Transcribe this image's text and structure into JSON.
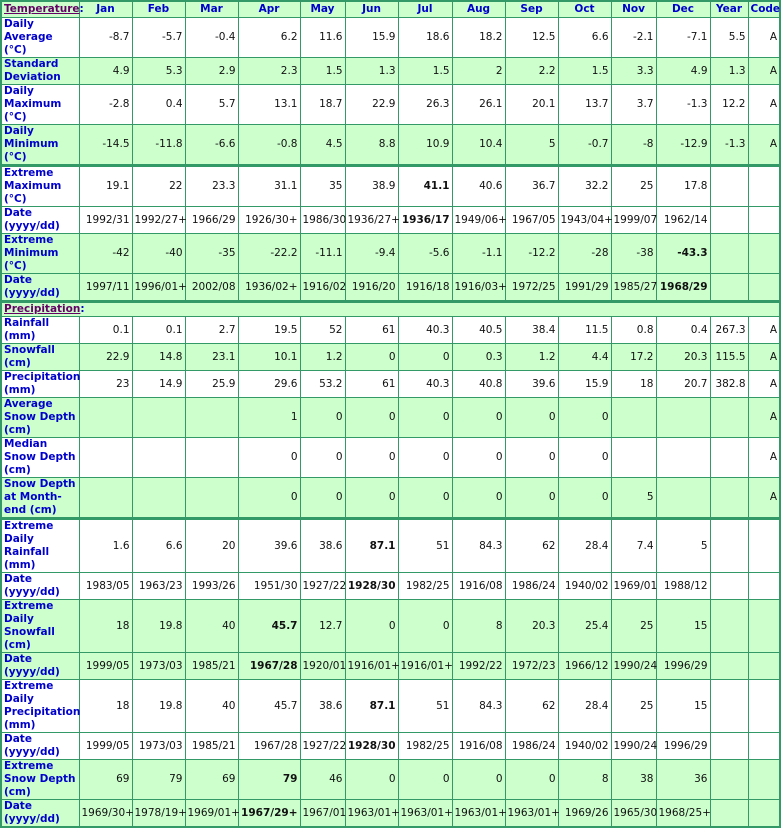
{
  "colors": {
    "header_bg": "#ccffcc",
    "border": "#339966",
    "label": "#0000cc",
    "section": "#660066"
  },
  "columns": [
    "Jan",
    "Feb",
    "Mar",
    "Apr",
    "May",
    "Jun",
    "Jul",
    "Aug",
    "Sep",
    "Oct",
    "Nov",
    "Dec",
    "Year",
    "Code"
  ],
  "sections": [
    {
      "title": "Temperature",
      "colon": ":",
      "rows": [
        {
          "label": "Daily Average (°C)",
          "values": [
            "-8.7",
            "-5.7",
            "-0.4",
            "6.2",
            "11.6",
            "15.9",
            "18.6",
            "18.2",
            "12.5",
            "6.6",
            "-2.1",
            "-7.1",
            "5.5",
            "A"
          ],
          "bold": []
        },
        {
          "label": "Standard Deviation",
          "values": [
            "4.9",
            "5.3",
            "2.9",
            "2.3",
            "1.5",
            "1.3",
            "1.5",
            "2",
            "2.2",
            "1.5",
            "3.3",
            "4.9",
            "1.3",
            "A"
          ],
          "bold": []
        },
        {
          "label": "Daily Maximum (°C)",
          "values": [
            "-2.8",
            "0.4",
            "5.7",
            "13.1",
            "18.7",
            "22.9",
            "26.3",
            "26.1",
            "20.1",
            "13.7",
            "3.7",
            "-1.3",
            "12.2",
            "A"
          ],
          "bold": []
        },
        {
          "label": "Daily Minimum (°C)",
          "values": [
            "-14.5",
            "-11.8",
            "-6.6",
            "-0.8",
            "4.5",
            "8.8",
            "10.9",
            "10.4",
            "5",
            "-0.7",
            "-8",
            "-12.9",
            "-1.3",
            "A"
          ],
          "bold": []
        },
        {
          "label": "Extreme Maximum (°C)",
          "values": [
            "19.1",
            "22",
            "23.3",
            "31.1",
            "35",
            "38.9",
            "41.1",
            "40.6",
            "36.7",
            "32.2",
            "25",
            "17.8",
            "",
            ""
          ],
          "bold": [
            6
          ]
        },
        {
          "label": "Date (yyyy/dd)",
          "values": [
            "1992/31",
            "1992/27+",
            "1966/29",
            "1926/30+",
            "1986/30",
            "1936/27+",
            "1936/17",
            "1949/06+",
            "1967/05",
            "1943/04+",
            "1999/07",
            "1962/14",
            "",
            ""
          ],
          "bold": [
            6
          ]
        },
        {
          "label": "Extreme Minimum (°C)",
          "values": [
            "-42",
            "-40",
            "-35",
            "-22.2",
            "-11.1",
            "-9.4",
            "-5.6",
            "-1.1",
            "-12.2",
            "-28",
            "-38",
            "-43.3",
            "",
            ""
          ],
          "bold": [
            11
          ]
        },
        {
          "label": "Date (yyyy/dd)",
          "values": [
            "1997/11",
            "1996/01+",
            "2002/08",
            "1936/02+",
            "1916/02",
            "1916/20",
            "1916/18",
            "1916/03+",
            "1972/25",
            "1991/29",
            "1985/27",
            "1968/29",
            "",
            ""
          ],
          "bold": [
            11
          ]
        }
      ]
    },
    {
      "title": "Precipitation",
      "colon": ":",
      "rows": [
        {
          "label": "Rainfall (mm)",
          "values": [
            "0.1",
            "0.1",
            "2.7",
            "19.5",
            "52",
            "61",
            "40.3",
            "40.5",
            "38.4",
            "11.5",
            "0.8",
            "0.4",
            "267.3",
            "A"
          ],
          "bold": []
        },
        {
          "label": "Snowfall (cm)",
          "values": [
            "22.9",
            "14.8",
            "23.1",
            "10.1",
            "1.2",
            "0",
            "0",
            "0.3",
            "1.2",
            "4.4",
            "17.2",
            "20.3",
            "115.5",
            "A"
          ],
          "bold": []
        },
        {
          "label": "Precipitation (mm)",
          "values": [
            "23",
            "14.9",
            "25.9",
            "29.6",
            "53.2",
            "61",
            "40.3",
            "40.8",
            "39.6",
            "15.9",
            "18",
            "20.7",
            "382.8",
            "A"
          ],
          "bold": []
        },
        {
          "label": "Average Snow Depth (cm)",
          "values": [
            "",
            "",
            "",
            "1",
            "0",
            "0",
            "0",
            "0",
            "0",
            "0",
            "",
            "",
            "",
            "A"
          ],
          "bold": []
        },
        {
          "label": "Median Snow Depth (cm)",
          "values": [
            "",
            "",
            "",
            "0",
            "0",
            "0",
            "0",
            "0",
            "0",
            "0",
            "",
            "",
            "",
            "A"
          ],
          "bold": []
        },
        {
          "label": "Snow Depth at Month-end (cm)",
          "values": [
            "",
            "",
            "",
            "0",
            "0",
            "0",
            "0",
            "0",
            "0",
            "0",
            "5",
            "",
            "",
            "A"
          ],
          "bold": []
        },
        {
          "label": "Extreme Daily Rainfall (mm)",
          "values": [
            "1.6",
            "6.6",
            "20",
            "39.6",
            "38.6",
            "87.1",
            "51",
            "84.3",
            "62",
            "28.4",
            "7.4",
            "5",
            "",
            ""
          ],
          "bold": [
            5
          ]
        },
        {
          "label": "Date (yyyy/dd)",
          "values": [
            "1983/05",
            "1963/23",
            "1993/26",
            "1951/30",
            "1927/22",
            "1928/30",
            "1982/25",
            "1916/08",
            "1986/24",
            "1940/02",
            "1969/01",
            "1988/12",
            "",
            ""
          ],
          "bold": [
            5
          ]
        },
        {
          "label": "Extreme Daily Snowfall (cm)",
          "values": [
            "18",
            "19.8",
            "40",
            "45.7",
            "12.7",
            "0",
            "0",
            "8",
            "20.3",
            "25.4",
            "25",
            "15",
            "",
            ""
          ],
          "bold": [
            3
          ]
        },
        {
          "label": "Date (yyyy/dd)",
          "values": [
            "1999/05",
            "1973/03",
            "1985/21",
            "1967/28",
            "1920/01",
            "1916/01+",
            "1916/01+",
            "1992/22",
            "1972/23",
            "1966/12",
            "1990/24",
            "1996/29",
            "",
            ""
          ],
          "bold": [
            3
          ]
        },
        {
          "label": "Extreme Daily Precipitation (mm)",
          "values": [
            "18",
            "19.8",
            "40",
            "45.7",
            "38.6",
            "87.1",
            "51",
            "84.3",
            "62",
            "28.4",
            "25",
            "15",
            "",
            ""
          ],
          "bold": [
            5
          ]
        },
        {
          "label": "Date (yyyy/dd)",
          "values": [
            "1999/05",
            "1973/03",
            "1985/21",
            "1967/28",
            "1927/22",
            "1928/30",
            "1982/25",
            "1916/08",
            "1986/24",
            "1940/02",
            "1990/24",
            "1996/29",
            "",
            ""
          ],
          "bold": [
            5
          ]
        },
        {
          "label": "Extreme Snow Depth (cm)",
          "values": [
            "69",
            "79",
            "69",
            "79",
            "46",
            "0",
            "0",
            "0",
            "0",
            "8",
            "38",
            "36",
            "",
            ""
          ],
          "bold": [
            3
          ]
        },
        {
          "label": "Date (yyyy/dd)",
          "values": [
            "1969/30+",
            "1978/19+",
            "1969/01+",
            "1967/29+",
            "1967/01",
            "1963/01+",
            "1963/01+",
            "1963/01+",
            "1963/01+",
            "1969/26",
            "1965/30",
            "1968/25+",
            "",
            ""
          ],
          "bold": [
            3
          ]
        }
      ]
    }
  ]
}
